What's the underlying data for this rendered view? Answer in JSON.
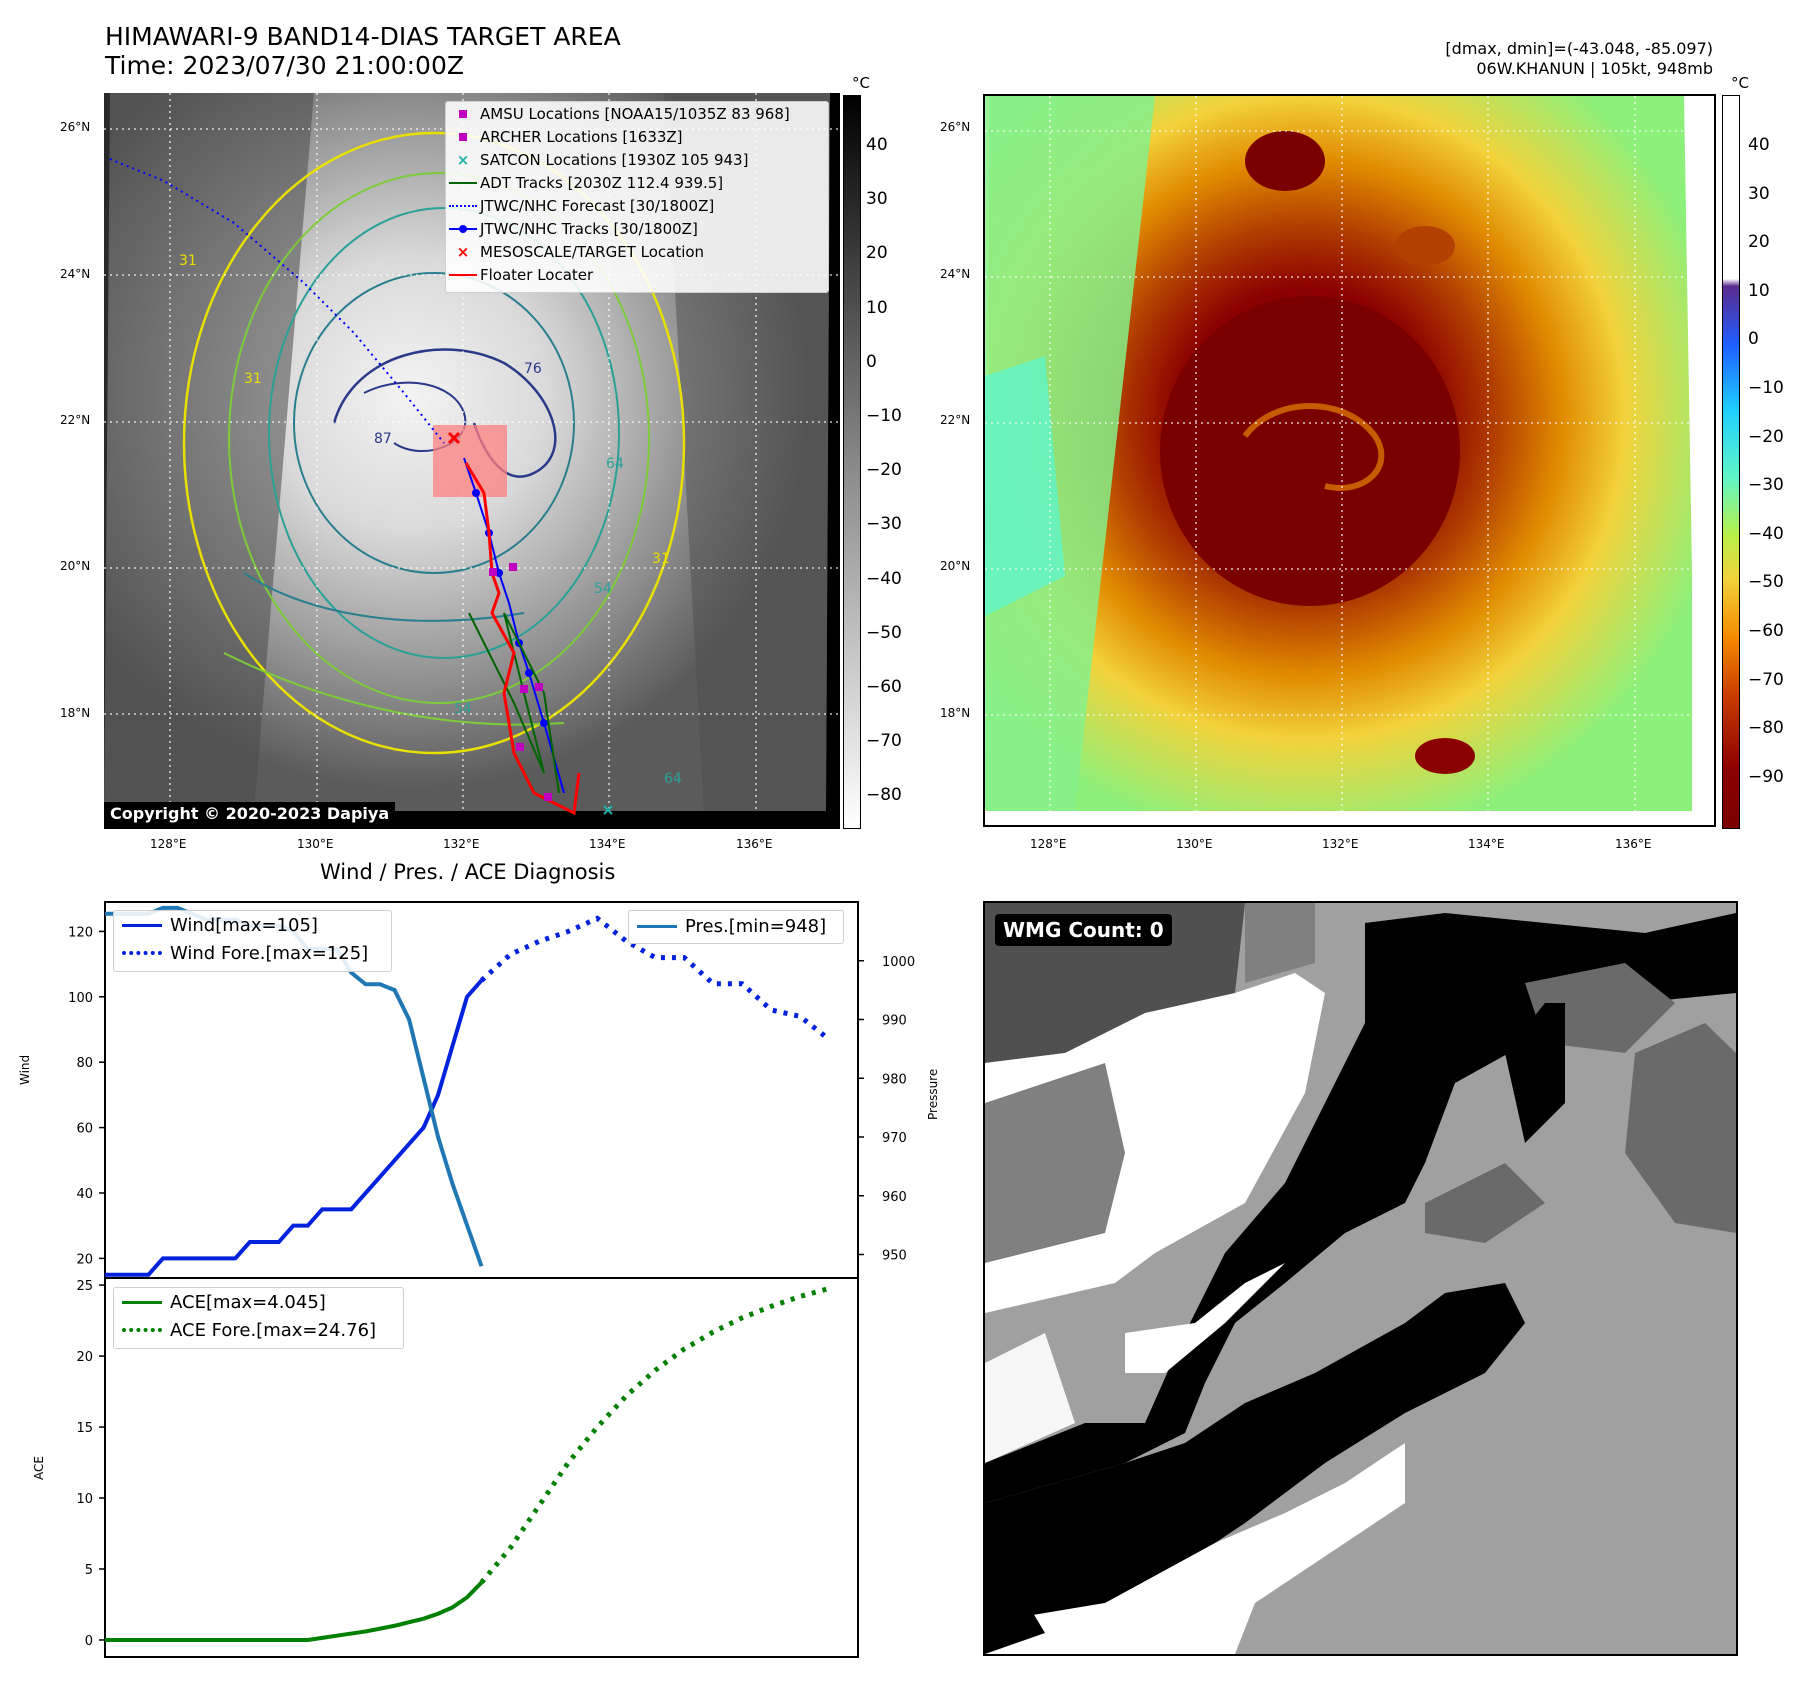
{
  "header": {
    "title_line1": "HIMAWARI-9 BAND14-DIAS TARGET AREA",
    "title_line2": "Time: 2023/07/30 21:00:00Z",
    "dmax_line": "[dmax, dmin]=(-43.048, -85.097)",
    "storm_line": "06W.KHANUN | 105kt, 948mb"
  },
  "map": {
    "lat_labels": [
      "26°N",
      "24°N",
      "22°N",
      "20°N",
      "18°N"
    ],
    "lon_labels": [
      "128°E",
      "130°E",
      "132°E",
      "134°E",
      "136°E"
    ],
    "copyright": "Copyright © 2020-2023 Dapiya",
    "contour_labels": [
      "31",
      "31",
      "31",
      "54",
      "54",
      "64",
      "64",
      "76",
      "87"
    ],
    "legend": [
      {
        "label": "AMSU Locations [NOAA15/1035Z 83 968]",
        "color": "#bf00bf",
        "icon": "square-marker"
      },
      {
        "label": "ARCHER Locations [1633Z]",
        "color": "#bf00bf",
        "icon": "square-marker"
      },
      {
        "label": "SATCON Locations [1930Z 105 943]",
        "color": "#20b2aa",
        "icon": "x-marker"
      },
      {
        "label": "ADT Tracks [2030Z 112.4 939.5]",
        "color": "#006400",
        "icon": "solid-line"
      },
      {
        "label": "JTWC/NHC Forecast [30/1800Z]",
        "color": "#0000ff",
        "icon": "dotted-line"
      },
      {
        "label": "JTWC/NHC Tracks [30/1800Z]",
        "color": "#0000ff",
        "icon": "line-with-dot"
      },
      {
        "label": "MESOSCALE/TARGET Location",
        "color": "#ff0000",
        "icon": "x-marker"
      },
      {
        "label": "Floater Locater",
        "color": "#ff0000",
        "icon": "solid-line"
      }
    ],
    "colorbar_gray": {
      "unit": "°C",
      "ticks": [
        "40",
        "30",
        "20",
        "10",
        "0",
        "−10",
        "−20",
        "−30",
        "−40",
        "−50",
        "−60",
        "−70",
        "−80"
      ]
    },
    "colorbar_color": {
      "unit": "°C",
      "ticks": [
        "40",
        "30",
        "20",
        "10",
        "0",
        "−10",
        "−20",
        "−30",
        "−40",
        "−50",
        "−60",
        "−70",
        "−80",
        "−90"
      ]
    }
  },
  "wmg": {
    "label": "WMG Count: 0"
  },
  "chart_data": [
    {
      "type": "line",
      "title": "Wind / Pres. / ACE Diagnosis",
      "ylabel": "Wind",
      "y2label": "Pressure",
      "ylim": [
        14,
        129
      ],
      "y2lim": [
        946,
        1010
      ],
      "yticks": [
        "20",
        "40",
        "60",
        "80",
        "100",
        "120"
      ],
      "y2ticks": [
        "950",
        "960",
        "970",
        "980",
        "990",
        "1000"
      ],
      "series": [
        {
          "name": "Wind[max=105]",
          "style": "solid",
          "color": "#0022dd",
          "x": [
            0,
            1,
            2,
            3,
            4,
            5,
            6,
            7,
            8,
            9,
            10,
            11,
            12,
            13,
            14,
            15,
            16,
            17,
            18,
            19,
            20,
            21,
            22,
            23,
            24,
            25,
            26
          ],
          "values": [
            15,
            15,
            15,
            15,
            20,
            20,
            20,
            20,
            20,
            20,
            25,
            25,
            25,
            30,
            30,
            35,
            35,
            35,
            40,
            45,
            50,
            55,
            60,
            70,
            85,
            100,
            105
          ]
        },
        {
          "name": "Wind Fore.[max=125]",
          "style": "dotted",
          "color": "#0022dd",
          "x": [
            26,
            28,
            30,
            32,
            34,
            36,
            38,
            40,
            42,
            44,
            46,
            48,
            50
          ],
          "values": [
            105,
            113,
            117,
            120,
            124,
            117,
            112,
            112,
            104,
            104,
            96,
            94,
            87
          ]
        },
        {
          "name": "Pres.[min=948]",
          "style": "solid",
          "color": "#1f77b4",
          "axis": "right",
          "x": [
            0,
            1,
            2,
            3,
            4,
            5,
            6,
            7,
            8,
            9,
            10,
            11,
            12,
            13,
            14,
            15,
            16,
            17,
            18,
            19,
            20,
            21,
            22,
            23,
            24,
            25,
            26
          ],
          "values": [
            1008,
            1008,
            1008,
            1008,
            1009,
            1009,
            1008,
            1007,
            1007,
            1007,
            1006,
            1006,
            1006,
            1005,
            1002,
            1002,
            1002,
            998,
            996,
            996,
            995,
            990,
            980,
            970,
            962,
            955,
            948
          ]
        }
      ]
    },
    {
      "type": "line",
      "ylabel": "ACE",
      "ylim": [
        -1.2,
        25.5
      ],
      "yticks": [
        "0",
        "5",
        "10",
        "15",
        "20",
        "25"
      ],
      "series": [
        {
          "name": "ACE[max=4.045]",
          "style": "solid",
          "color": "#008000",
          "x": [
            0,
            2,
            4,
            6,
            8,
            10,
            12,
            14,
            15,
            16,
            17,
            18,
            19,
            20,
            21,
            22,
            23,
            24,
            25,
            26
          ],
          "values": [
            0,
            0,
            0,
            0,
            0,
            0,
            0,
            0,
            0.15,
            0.3,
            0.45,
            0.6,
            0.8,
            1.0,
            1.25,
            1.5,
            1.85,
            2.3,
            3.0,
            4.045
          ]
        },
        {
          "name": "ACE Fore.[max=24.76]",
          "style": "dotted",
          "color": "#008000",
          "x": [
            26,
            28,
            30,
            32,
            34,
            36,
            38,
            40,
            42,
            44,
            46,
            48,
            50
          ],
          "values": [
            4.045,
            6.5,
            9.5,
            12.5,
            15.0,
            17.2,
            19.0,
            20.5,
            21.7,
            22.7,
            23.5,
            24.2,
            24.76
          ]
        }
      ]
    }
  ]
}
